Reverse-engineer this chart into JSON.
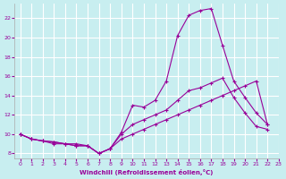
{
  "xlabel": "Windchill (Refroidissement éolien,°C)",
  "bg_color": "#c8eef0",
  "line_color": "#990099",
  "grid_color": "#ffffff",
  "xlim": [
    -0.5,
    23
  ],
  "ylim": [
    7.5,
    23.5
  ],
  "xticks": [
    0,
    1,
    2,
    3,
    4,
    5,
    6,
    7,
    8,
    9,
    10,
    11,
    12,
    13,
    14,
    15,
    16,
    17,
    18,
    19,
    20,
    21,
    22,
    23
  ],
  "yticks": [
    8,
    10,
    12,
    14,
    16,
    18,
    20,
    22
  ],
  "line1_x": [
    0,
    1,
    2,
    3,
    4,
    5,
    6,
    7,
    8,
    9,
    10,
    11,
    12,
    13,
    14,
    15,
    16,
    17,
    18,
    19,
    20,
    21,
    22
  ],
  "line1_y": [
    10,
    9.5,
    9.3,
    9.0,
    9.0,
    9.0,
    8.8,
    8.0,
    8.5,
    10.2,
    13.0,
    12.8,
    13.5,
    15.5,
    20.2,
    22.3,
    22.8,
    23.0,
    19.2,
    15.5,
    13.8,
    12.2,
    11.0
  ],
  "line2_x": [
    0,
    1,
    2,
    3,
    4,
    5,
    6,
    7,
    8,
    9,
    10,
    11,
    12,
    13,
    14,
    15,
    16,
    17,
    18,
    19,
    20,
    21,
    22
  ],
  "line2_y": [
    10,
    9.5,
    9.3,
    9.2,
    9.0,
    8.8,
    8.8,
    8.0,
    8.5,
    10.0,
    11.0,
    11.5,
    12.0,
    12.5,
    13.5,
    14.5,
    14.8,
    15.3,
    15.8,
    13.8,
    12.2,
    10.8,
    10.5
  ],
  "line3_x": [
    0,
    1,
    2,
    3,
    4,
    5,
    6,
    7,
    8,
    9,
    10,
    11,
    12,
    13,
    14,
    15,
    16,
    17,
    18,
    19,
    20,
    21,
    22
  ],
  "line3_y": [
    10,
    9.5,
    9.3,
    9.2,
    9.0,
    8.8,
    8.8,
    8.0,
    8.5,
    9.5,
    10.0,
    10.5,
    11.0,
    11.5,
    12.0,
    12.5,
    13.0,
    13.5,
    14.0,
    14.5,
    15.0,
    15.5,
    11.0
  ]
}
